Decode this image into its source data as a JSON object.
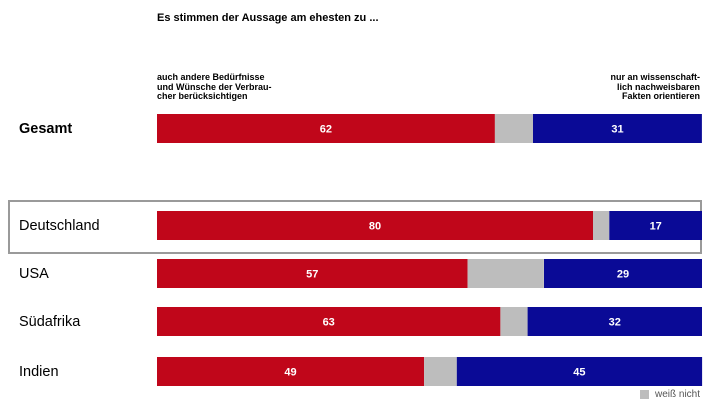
{
  "chart_data": {
    "type": "bar",
    "stacked": true,
    "orientation": "horizontal",
    "title": "Es stimmen der Aussage am ehesten zu ...",
    "categories": [
      "Gesamt",
      "Deutschland",
      "USA",
      "Südafrika",
      "Indien"
    ],
    "series": [
      {
        "name": "auch andere Bedürfnisse und Wünsche der Verbraucher berücksichtigen",
        "values": [
          62,
          80,
          57,
          63,
          49
        ],
        "color": "#c0061a"
      },
      {
        "name": "weiß nicht",
        "values": [
          7,
          3,
          14,
          5,
          6
        ],
        "color": "#bdbdbd"
      },
      {
        "name": "nur an wissenschaftlich nachweisbaren Fakten orientieren",
        "values": [
          31,
          17,
          29,
          32,
          45
        ],
        "color": "#0a0a96"
      }
    ],
    "xlim": [
      0,
      100
    ],
    "highlight_category": "Deutschland"
  },
  "text": {
    "title": "Es stimmen der Aussage am ehesten zu ...",
    "left_lines": [
      "auch andere Bedürfnisse",
      "und Wünsche der Verbrau-",
      "cher berücksichtigen"
    ],
    "right_lines": [
      "nur an wissenschaft-",
      "lich nachweisbaren",
      "Fakten orientieren"
    ],
    "legend_dontknow": "weiß nicht"
  }
}
